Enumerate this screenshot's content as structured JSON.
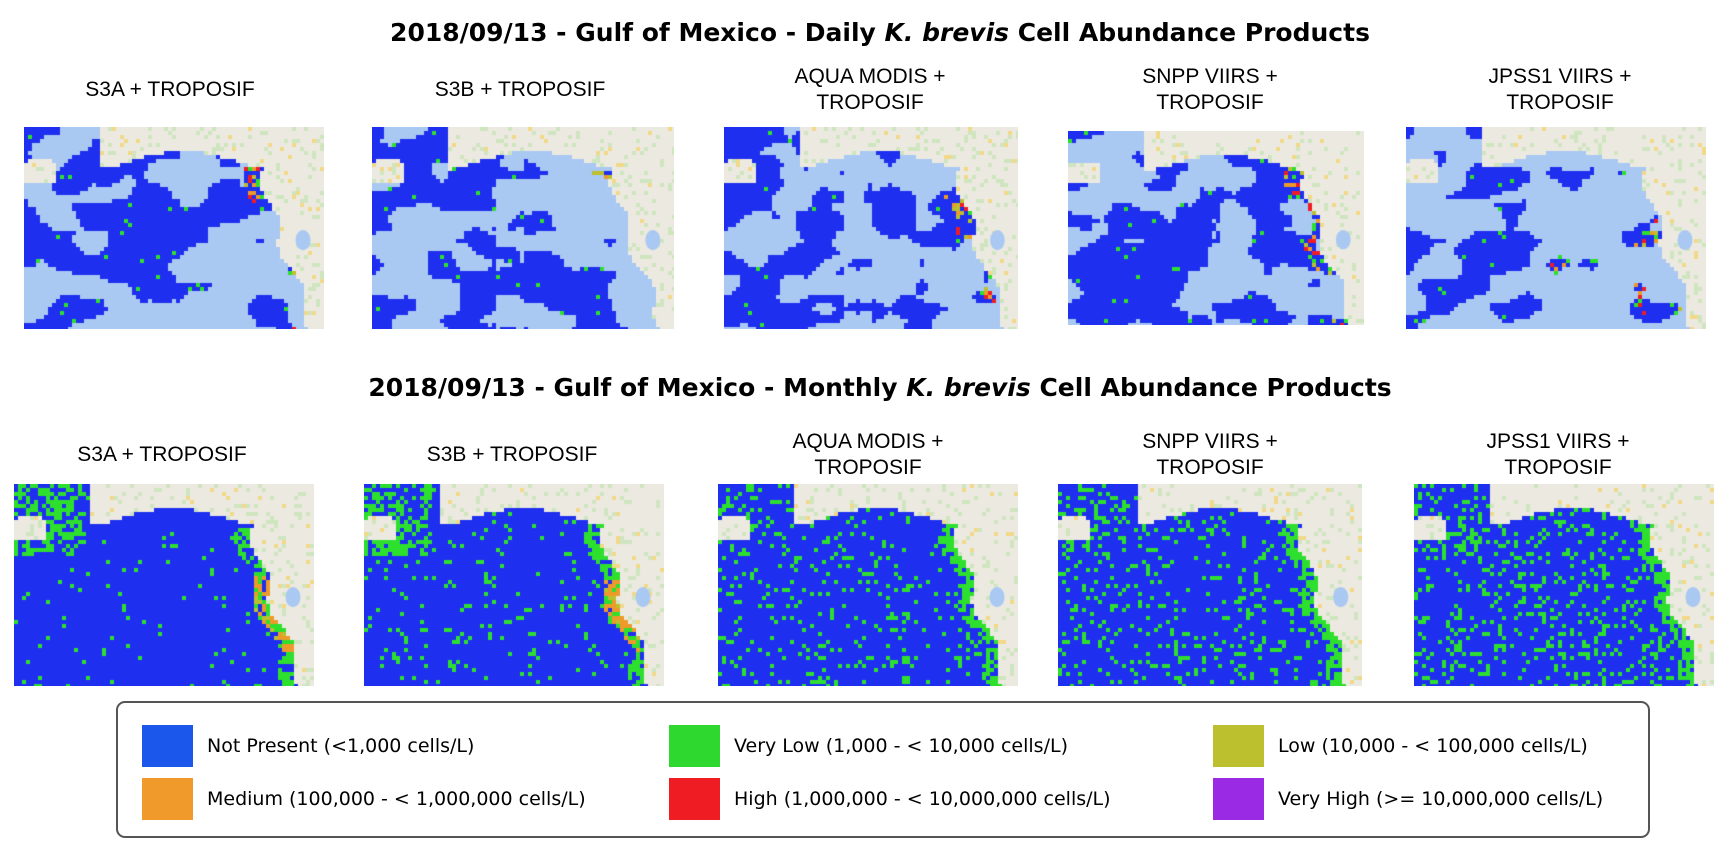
{
  "daily": {
    "title_prefix": "2018/09/13 - Gulf of Mexico - Daily ",
    "title_species": "K. brevis",
    "title_suffix": " Cell Abundance Products",
    "panels": [
      {
        "label": "S3A + TROPOSIF"
      },
      {
        "label": "S3B + TROPOSIF"
      },
      {
        "label": "AQUA MODIS +\nTROPOSIF"
      },
      {
        "label": "SNPP VIIRS +\nTROPOSIF"
      },
      {
        "label": "JPSS1 VIIRS +\nTROPOSIF"
      }
    ]
  },
  "monthly": {
    "title_prefix": "2018/09/13 - Gulf of Mexico - Monthly ",
    "title_species": "K. brevis",
    "title_suffix": " Cell Abundance Products",
    "panels": [
      {
        "label": "S3A + TROPOSIF"
      },
      {
        "label": "S3B + TROPOSIF"
      },
      {
        "label": "AQUA MODIS +\nTROPOSIF"
      },
      {
        "label": "SNPP VIIRS +\nTROPOSIF"
      },
      {
        "label": "JPSS1 VIIRS +\nTROPOSIF"
      }
    ]
  },
  "legend": {
    "items": [
      {
        "label": "Not Present (<1,000 cells/L)",
        "color": "#1c57ec"
      },
      {
        "label": "Very Low (1,000 - < 10,000 cells/L)",
        "color": "#2ed82e"
      },
      {
        "label": "Low (10,000 - < 100,000 cells/L)",
        "color": "#bcc02e"
      },
      {
        "label": "Medium (100,000 - < 1,000,000 cells/L)",
        "color": "#ef9a2a"
      },
      {
        "label": "High (1,000,000 - < 10,000,000 cells/L)",
        "color": "#f01c24"
      },
      {
        "label": "Very High (>= 10,000,000 cells/L)",
        "color": "#9a2ae4"
      }
    ]
  },
  "map_colors": {
    "not_present": "#1f2ff0",
    "very_low": "#2ee02e",
    "low": "#bcc02e",
    "medium": "#ee9a2a",
    "high": "#f01c24",
    "water": "#a9c8f2",
    "land": "#eceae0",
    "land_green": "#cfe5c0",
    "road": "#f2d98a"
  }
}
